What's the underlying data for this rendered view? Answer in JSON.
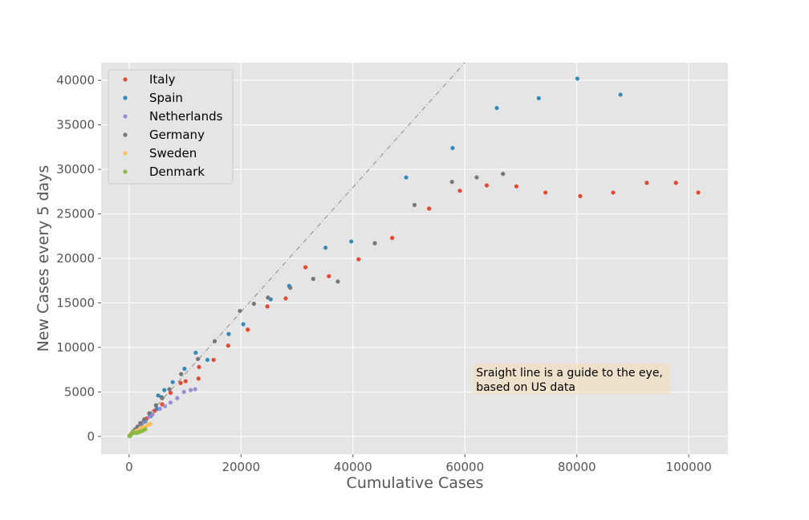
{
  "chart_data": {
    "type": "scatter",
    "title": "",
    "xlabel": "Cumulative Cases",
    "ylabel": "New Cases every 5 days",
    "xlim": [
      -5000,
      107000
    ],
    "ylim": [
      -2000,
      42000
    ],
    "xticks": [
      0,
      20000,
      40000,
      60000,
      80000,
      100000
    ],
    "xtick_labels": [
      "0",
      "20000",
      "40000",
      "60000",
      "80000",
      "100000"
    ],
    "yticks": [
      0,
      5000,
      10000,
      15000,
      20000,
      25000,
      30000,
      35000,
      40000
    ],
    "ytick_labels": [
      "0",
      "5000",
      "10000",
      "15000",
      "20000",
      "25000",
      "30000",
      "35000",
      "40000"
    ],
    "grid": true,
    "legend_position": "top-left",
    "background": "#e5e5e5",
    "guide_line": {
      "style": "dash-dot",
      "color": "#8a8a8a",
      "from": [
        0,
        0
      ],
      "to": [
        60000,
        42000
      ]
    },
    "annotation": {
      "lines": [
        "Sraight line is a guide to the eye,",
        "based on US data"
      ],
      "x": 62000,
      "y": 5200
    },
    "series": [
      {
        "name": "Italy",
        "color": "#e24a33",
        "x": [
          150,
          230,
          400,
          650,
          900,
          1200,
          1700,
          2000,
          2500,
          3100,
          3900,
          4600,
          5900,
          7400,
          9200,
          10100,
          12500,
          12400,
          15100,
          17700,
          21200,
          24700,
          27980,
          31500,
          35700,
          41000,
          47000,
          53600,
          59100,
          63900,
          69200,
          74400,
          80600,
          86500,
          92500,
          97700,
          101700
        ],
        "y": [
          100,
          150,
          250,
          400,
          600,
          800,
          1100,
          1300,
          1600,
          2000,
          2500,
          2900,
          3600,
          4900,
          6000,
          6200,
          7800,
          6500,
          8600,
          10200,
          12000,
          14600,
          15500,
          19000,
          18000,
          19900,
          22300,
          25600,
          27600,
          28200,
          28100,
          27400,
          27000,
          27400,
          28500,
          28500,
          27400
        ]
      },
      {
        "name": "Spain",
        "color": "#348abd",
        "x": [
          100,
          200,
          400,
          700,
          1100,
          1600,
          2200,
          2900,
          3900,
          5000,
          5800,
          6300,
          7800,
          9900,
          11900,
          14000,
          17800,
          20400,
          25300,
          28600,
          35100,
          39700,
          49500,
          57800,
          65700,
          73200,
          80100,
          87800
        ],
        "y": [
          50,
          100,
          250,
          400,
          600,
          800,
          1200,
          1700,
          2300,
          3100,
          4400,
          5200,
          6100,
          7600,
          9400,
          8600,
          11500,
          12600,
          15400,
          16900,
          21200,
          21900,
          29100,
          32400,
          36900,
          38000,
          40200,
          38400
        ],
        "note": "additional point at (5200, 4600)"
      },
      {
        "name": "Netherlands",
        "color": "#988ed5",
        "x": [
          80,
          130,
          200,
          300,
          500,
          700,
          1000,
          1400,
          1800,
          2300,
          2800,
          3600,
          4200,
          5500,
          6400,
          7400,
          8600,
          9800,
          11000,
          11800
        ],
        "y": [
          50,
          100,
          150,
          250,
          400,
          500,
          700,
          900,
          1100,
          1500,
          1800,
          2200,
          2500,
          3100,
          3400,
          3800,
          4300,
          5000,
          5200,
          5300
        ]
      },
      {
        "name": "Germany",
        "color": "#777777",
        "x": [
          120,
          200,
          350,
          550,
          800,
          1100,
          1500,
          2000,
          2700,
          3600,
          4800,
          5900,
          7200,
          9300,
          12300,
          15300,
          19800,
          22300,
          24800,
          28800,
          32900,
          37300,
          43900,
          51000,
          57700,
          62100,
          66800
        ],
        "y": [
          100,
          150,
          250,
          400,
          600,
          800,
          1100,
          1500,
          1900,
          2600,
          3500,
          4300,
          5300,
          7000,
          8700,
          10700,
          14100,
          14900,
          15600,
          16700,
          17700,
          17400,
          21700,
          26000,
          28600,
          29100,
          29500
        ]
      },
      {
        "name": "Sweden",
        "color": "#fbc15e",
        "x": [
          50,
          100,
          200,
          300,
          500,
          700,
          900,
          1100,
          1300,
          1600,
          2000,
          2400,
          2900,
          3400,
          3800
        ],
        "y": [
          40,
          80,
          150,
          250,
          350,
          450,
          500,
          550,
          600,
          700,
          900,
          1000,
          1100,
          1300,
          1400
        ]
      },
      {
        "name": "Denmark",
        "color": "#8eba42",
        "x": [
          50,
          100,
          150,
          250,
          350,
          500,
          650,
          800,
          1000,
          1200,
          1400,
          1600,
          1800,
          2000,
          2300,
          2600,
          2900
        ],
        "y": [
          30,
          60,
          100,
          150,
          250,
          350,
          450,
          500,
          450,
          400,
          400,
          450,
          500,
          550,
          600,
          700,
          800
        ]
      }
    ]
  }
}
